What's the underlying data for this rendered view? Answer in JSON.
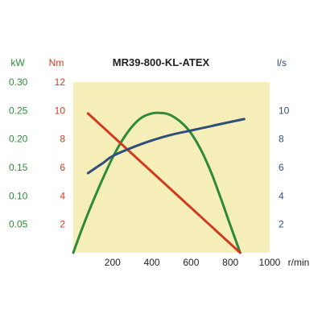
{
  "colors": {
    "plot_bg": "#f6eeb9",
    "kw": "#2e8a3a",
    "nm": "#d23a1f",
    "ls": "#2e4f7a",
    "axis_text": "#222222"
  },
  "chart_data": {
    "type": "line",
    "title": "MR39-800-KL-ATEX",
    "x": {
      "unit": "r/min",
      "range": [
        0,
        1000
      ],
      "ticks": [
        "200",
        "400",
        "600",
        "800",
        "1000"
      ],
      "tick_values": [
        200,
        400,
        600,
        800,
        1000
      ]
    },
    "axes": {
      "kw": {
        "unit": "kW",
        "range": [
          0,
          0.3
        ],
        "ticks": [
          "0.05",
          "0.10",
          "0.15",
          "0.20",
          "0.25",
          "0.30"
        ],
        "tick_values": [
          0.05,
          0.1,
          0.15,
          0.2,
          0.25,
          0.3
        ]
      },
      "nm": {
        "unit": "Nm",
        "range": [
          0,
          12
        ],
        "ticks": [
          "2",
          "4",
          "6",
          "8",
          "10",
          "12"
        ],
        "tick_values": [
          2,
          4,
          6,
          8,
          10,
          12
        ]
      },
      "ls": {
        "unit": "l/s",
        "range": [
          0,
          12
        ],
        "ticks": [
          "2",
          "4",
          "6",
          "8",
          "10"
        ],
        "tick_values": [
          2,
          4,
          6,
          8,
          10
        ]
      }
    },
    "series": [
      {
        "axis": "kw",
        "color_key": "kw",
        "x": [
          0,
          50,
          100,
          150,
          200,
          250,
          300,
          350,
          400,
          440,
          480,
          520,
          560,
          600,
          650,
          700,
          750,
          800,
          850
        ],
        "y": [
          0,
          0.047,
          0.09,
          0.13,
          0.167,
          0.198,
          0.222,
          0.238,
          0.245,
          0.246,
          0.244,
          0.237,
          0.226,
          0.21,
          0.181,
          0.143,
          0.097,
          0.048,
          0
        ]
      },
      {
        "axis": "nm",
        "color_key": "nm",
        "x": [
          75,
          850
        ],
        "y": [
          9.8,
          0
        ]
      },
      {
        "axis": "ls",
        "color_key": "ls",
        "x": [
          75,
          150,
          200,
          300,
          400,
          500,
          600,
          700,
          800,
          870
        ],
        "y": [
          5.6,
          6.3,
          6.8,
          7.4,
          7.9,
          8.3,
          8.6,
          8.9,
          9.2,
          9.4
        ]
      }
    ]
  }
}
